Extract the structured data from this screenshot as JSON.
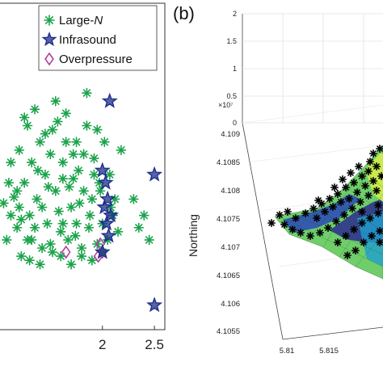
{
  "chart_data": [
    {
      "type": "scatter",
      "panel": "",
      "xlabel": "",
      "ylabel": "",
      "x_ticks": [
        "2",
        "2.5"
      ],
      "legend": {
        "placement": "top-right",
        "entries": [
          {
            "name_prefix": "Large-",
            "name_italic": "N",
            "marker": "asterisk",
            "color": "#1aa34a"
          },
          {
            "name": "Infrasound",
            "marker": "star",
            "color": "#1f2f8a"
          },
          {
            "name": "Overpressure",
            "marker": "diamond",
            "color": "#b040a0"
          }
        ]
      },
      "series": [
        {
          "key": "large_n",
          "x": [
            1.05,
            1.1,
            1.12,
            1.15,
            1.18,
            1.2,
            1.22,
            1.25,
            1.28,
            1.3,
            1.32,
            1.35,
            1.37,
            1.4,
            1.42,
            1.45,
            1.47,
            1.5,
            1.52,
            1.55,
            1.57,
            1.6,
            1.62,
            1.65,
            1.67,
            1.7,
            1.72,
            1.75,
            1.77,
            1.8,
            1.82,
            1.85,
            1.87,
            1.9,
            1.92,
            1.95,
            1.97,
            2.0,
            2.02,
            2.05,
            2.07,
            2.1,
            2.12,
            2.15,
            1.25,
            1.35,
            1.45,
            1.55,
            1.65,
            1.75,
            1.85,
            1.95,
            1.3,
            1.4,
            1.5,
            1.6,
            1.7,
            1.8,
            1.9,
            2.0,
            1.2,
            1.38,
            1.48,
            1.58,
            1.68,
            1.78,
            1.88,
            1.98,
            2.08,
            2.3,
            2.35,
            2.4,
            2.45,
            1.52,
            1.62,
            1.72,
            1.82,
            1.92,
            1.42,
            1.32,
            1.22,
            1.12,
            1.28,
            1.18,
            1.08,
            2.18,
            1.62,
            1.74
          ],
          "y": [
            4.1075,
            4.108,
            4.1072,
            4.10765,
            4.1069,
            4.1074,
            4.1071,
            4.108,
            4.1066,
            4.1072,
            4.1085,
            4.1069,
            4.1076,
            4.109,
            4.1064,
            4.1082,
            4.107,
            4.1087,
            4.1063,
            4.1078,
            4.1095,
            4.1068,
            4.1081,
            4.109,
            4.1066,
            4.1074,
            4.1087,
            4.107,
            4.1083,
            4.1062,
            4.1078,
            4.1094,
            4.1069,
            4.1076,
            4.1086,
            4.1065,
            4.108,
            4.107,
            4.109,
            4.1066,
            4.1082,
            4.1072,
            4.1076,
            4.1068,
            4.1096,
            4.1098,
            4.1092,
            4.11,
            4.1097,
            4.109,
            4.1102,
            4.1093,
            4.1061,
            4.106,
            4.1065,
            4.1062,
            4.106,
            4.1064,
            4.1061,
            4.1063,
            4.1088,
            4.1083,
            4.1079,
            4.1073,
            4.1079,
            4.1075,
            4.1072,
            4.1078,
            4.1074,
            4.1076,
            4.1069,
            4.1072,
            4.1066,
            4.1093,
            4.1085,
            4.1081,
            4.1087,
            4.1082,
            4.1074,
            4.1066,
            4.1062,
            4.1085,
            4.1094,
            4.1078,
            4.1066,
            4.1088,
            4.107,
            4.1067
          ]
        },
        {
          "key": "infrasound",
          "x": [
            2.07,
            2.0,
            2.03,
            2.05,
            2.02,
            2.04,
            2.06,
            2.08,
            2.5,
            2.5,
            2.0
          ],
          "y": [
            4.11,
            4.1083,
            4.108,
            4.1076,
            4.1074,
            4.107,
            4.1067,
            4.1072,
            4.1082,
            4.105,
            4.1063
          ],
          "note": ""
        },
        {
          "key": "overpressure",
          "x": [
            1.65,
            1.98,
            2.0,
            1.96
          ],
          "y": [
            4.1063,
            4.1065,
            4.1063,
            4.1062
          ]
        }
      ],
      "xlim": [
        1.0,
        2.6
      ],
      "ylim": [
        4.1044,
        4.1124
      ]
    },
    {
      "type": "surface",
      "panel": "(b)",
      "ylabel": "Northing",
      "z_ticks": [
        "0",
        "0.5",
        "1",
        "1.5",
        "2"
      ],
      "z_exponent": "×10⁷",
      "y_ticks": [
        "4.1055",
        "4.106",
        "4.1065",
        "4.107",
        "4.1075",
        "4.108",
        "4.1085",
        "4.109"
      ],
      "x_ticks": [
        "5.81",
        "5.815"
      ],
      "colormap": [
        "#2b2a8f",
        "#2f62c9",
        "#1f9fd0",
        "#3bbf9a",
        "#8fdc5a",
        "#d7ef4c"
      ],
      "station_marker": "asterisk",
      "station_color": "#000000"
    }
  ]
}
